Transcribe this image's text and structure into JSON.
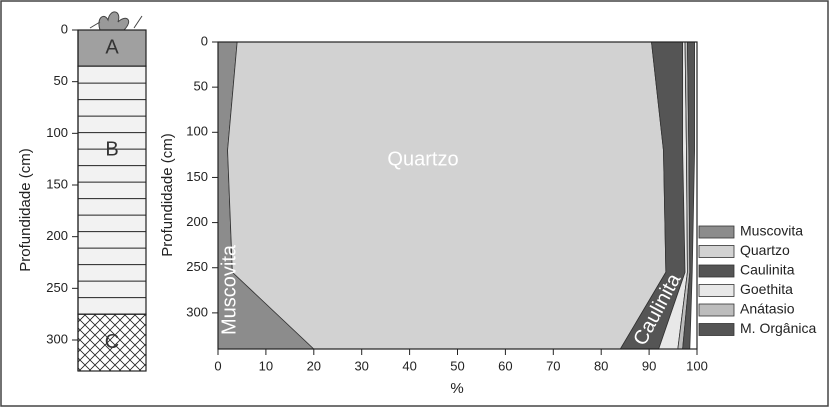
{
  "profile": {
    "ylabel": "Profundidade (cm)",
    "ylim": [
      0,
      330
    ],
    "yticks": [
      0,
      50,
      100,
      150,
      200,
      250,
      300
    ],
    "horizons": [
      {
        "label": "A",
        "top": 0,
        "bottom": 35
      },
      {
        "label": "B",
        "top": 35,
        "bottom": 275
      },
      {
        "label": "C",
        "top": 275,
        "bottom": 330
      }
    ]
  },
  "chart_data": {
    "type": "stacked-area-horizontal",
    "xlabel": "%",
    "ylabel": "Profundidade (cm)",
    "xlim": [
      0,
      100
    ],
    "xticks": [
      0,
      10,
      20,
      30,
      40,
      50,
      60,
      70,
      80,
      90,
      100
    ],
    "ylim": [
      0,
      340
    ],
    "yticks": [
      0,
      50,
      100,
      150,
      200,
      250,
      300
    ],
    "y_inverted": true,
    "depth": [
      0,
      120,
      255,
      340
    ],
    "series": [
      {
        "name": "Muscovita",
        "color": "#8c8c8c",
        "values": [
          4,
          2,
          3,
          20
        ]
      },
      {
        "name": "Quartzo",
        "color": "#d2d2d2",
        "values": [
          86.5,
          91,
          90.5,
          64
        ]
      },
      {
        "name": "Caulinita",
        "color": "#555555",
        "values": [
          6.5,
          4,
          4,
          8
        ]
      },
      {
        "name": "Goethita",
        "color": "#e8e8e8",
        "values": [
          0.5,
          0.8,
          0.5,
          4
        ]
      },
      {
        "name": "Anátasio",
        "color": "#bdbdbd",
        "values": [
          0.5,
          0.5,
          0.5,
          1
        ]
      },
      {
        "name": "M. Orgânica",
        "color": "#555555",
        "values": [
          1.5,
          1.2,
          0.5,
          1.5
        ]
      }
    ],
    "annotations": [
      "Quartzo",
      "Muscovita",
      "Caulinita"
    ]
  }
}
